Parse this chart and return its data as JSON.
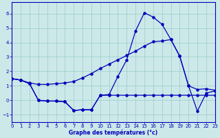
{
  "xlabel": "Graphe des températures (°c)",
  "xlim": [
    0,
    23
  ],
  "ylim": [
    -1.5,
    6.8
  ],
  "yticks": [
    -1,
    0,
    1,
    2,
    3,
    4,
    5,
    6
  ],
  "xticks": [
    0,
    1,
    2,
    3,
    4,
    5,
    6,
    7,
    8,
    9,
    10,
    11,
    12,
    13,
    14,
    15,
    16,
    17,
    18,
    19,
    20,
    21,
    22,
    23
  ],
  "bg_color": "#cce8e8",
  "grid_color": "#99cccc",
  "line_color": "#0000bb",
  "line_top": {
    "x": [
      0,
      1,
      2,
      3,
      4,
      5,
      6,
      7,
      8,
      9,
      10,
      11,
      12,
      13,
      14,
      15,
      16,
      17,
      18,
      19,
      20,
      21,
      22,
      23
    ],
    "y": [
      1.5,
      1.4,
      1.15,
      0.0,
      -0.05,
      -0.05,
      -0.1,
      -0.7,
      -0.65,
      -0.65,
      0.35,
      0.4,
      1.65,
      2.8,
      4.8,
      6.05,
      5.75,
      5.25,
      4.2,
      3.05,
      1.0,
      -0.75,
      0.5,
      0.65
    ]
  },
  "line_mid": {
    "x": [
      0,
      1,
      2,
      3,
      4,
      5,
      6,
      7,
      8,
      9,
      10,
      11,
      12,
      13,
      14,
      15,
      16,
      17,
      18,
      19,
      20,
      21,
      22,
      23
    ],
    "y": [
      1.5,
      1.4,
      1.2,
      1.1,
      1.1,
      1.15,
      1.2,
      1.3,
      1.55,
      1.85,
      2.2,
      2.5,
      2.8,
      3.1,
      3.4,
      3.75,
      4.05,
      4.1,
      4.2,
      3.05,
      1.0,
      0.75,
      0.8,
      0.7
    ]
  },
  "line_bot": {
    "x": [
      0,
      1,
      2,
      3,
      4,
      5,
      6,
      7,
      8,
      9,
      10,
      11,
      12,
      13,
      14,
      15,
      16,
      17,
      18,
      19,
      20,
      21,
      22,
      23
    ],
    "y": [
      1.5,
      1.4,
      1.15,
      0.0,
      -0.05,
      -0.05,
      -0.1,
      -0.7,
      -0.65,
      -0.65,
      0.35,
      0.35,
      0.35,
      0.35,
      0.35,
      0.35,
      0.35,
      0.35,
      0.35,
      0.35,
      0.35,
      0.35,
      0.35,
      0.35
    ]
  }
}
